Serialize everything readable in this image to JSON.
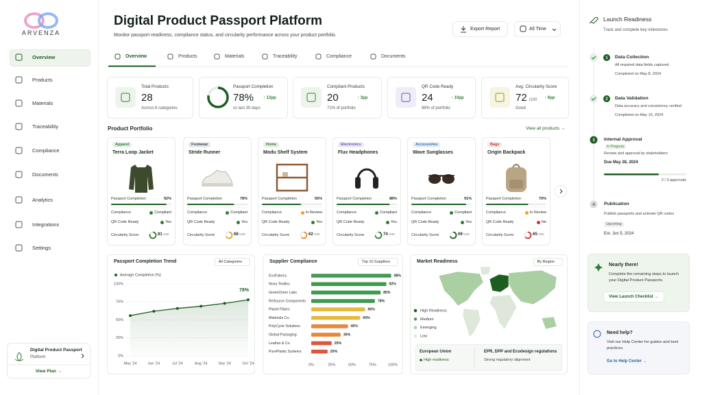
{
  "brand": "ARVENZA",
  "sidebar": {
    "nav": [
      "Overview",
      "Products",
      "Materials",
      "Traceability",
      "Compliance",
      "Documents",
      "Analytics",
      "Integrations",
      "Settings"
    ],
    "plan": {
      "title": "Digital Product Passport",
      "subtitle": "Platform",
      "link": "View Plan →"
    }
  },
  "header": {
    "title": "Digital Product Passport Platform",
    "subtitle": "Monitor passport readiness, compliance status, and circularity performance across your product portfolio.",
    "export": "Export Report",
    "period": "All Time"
  },
  "tabs": [
    "Overview",
    "Products",
    "Materials",
    "Traceability",
    "Compliance",
    "Documents"
  ],
  "kpis": [
    {
      "label": "Total Products",
      "value": 28,
      "note": "Across 6 categories"
    },
    {
      "label": "Passport Completion",
      "value": {
        "value": 78,
        "label": "78%"
      },
      "delta": "↑ 12pp",
      "note": "vs last 30 days"
    },
    {
      "label": "Compliant Products",
      "value": 20,
      "delta": "↑ 3pp",
      "note": "71% of portfolio"
    },
    {
      "label": "QR Code Ready",
      "value": 24,
      "delta": "↑ 10pp",
      "note": "86% of portfolio"
    },
    {
      "label": "Avg. Circularity Score",
      "value": 72,
      "unit": "/100",
      "delta": "↑ 6pp",
      "note": "Good"
    }
  ],
  "portfolio": {
    "title": "Product Portfolio",
    "link": "View all products →",
    "row_labels": {
      "completion": "Passport Completion",
      "compliance": "Compliance",
      "qr": "QR Code Ready",
      "circularity": "Circularity Score",
      "score_unit": "/100"
    },
    "products": [
      {
        "tag": "Apparel",
        "tag_color": "#2e7d32",
        "name": "Terra Loop Jacket",
        "completion": {
          "value": 92,
          "label": "92%"
        },
        "compliance": "Compliant",
        "compliance_color": "#2e7d32",
        "qr": "Yes",
        "qr_color": "#2e7d32",
        "circularity": 81,
        "score_color": "#2e7d32"
      },
      {
        "tag": "Footwear",
        "tag_color": "#37474f",
        "name": "Stride Runner",
        "completion": {
          "value": 78,
          "label": "78%"
        },
        "compliance": "Compliant",
        "compliance_color": "#2e7d32",
        "qr": "Yes",
        "qr_color": "#2e7d32",
        "circularity": 68,
        "score_color": "#e0a526"
      },
      {
        "tag": "Home",
        "tag_color": "#2e7d32",
        "name": "Modu Shelf System",
        "completion": {
          "value": 65,
          "label": "65%"
        },
        "compliance": "In Review",
        "compliance_color": "#f0a020",
        "qr": "Yes",
        "qr_color": "#2e7d32",
        "circularity": 62,
        "score_color": "#ef8c2a"
      },
      {
        "tag": "Electronics",
        "tag_color": "#6a4fb3",
        "name": "Flux Headphones",
        "completion": {
          "value": 88,
          "label": "88%"
        },
        "compliance": "Compliant",
        "compliance_color": "#2e7d32",
        "qr": "Yes",
        "qr_color": "#2e7d32",
        "circularity": 74,
        "score_color": "#2e7d32"
      },
      {
        "tag": "Accessories",
        "tag_color": "#2f6db3",
        "name": "Wave Sunglasses",
        "completion": {
          "value": 91,
          "label": "91%"
        },
        "compliance": "Compliant",
        "compliance_color": "#2e7d32",
        "qr": "Yes",
        "qr_color": "#2e7d32",
        "circularity": 69,
        "score_color": "#1b5e20"
      },
      {
        "tag": "Bags",
        "tag_color": "#c0392b",
        "name": "Origin Backpack",
        "completion": {
          "value": 70,
          "label": "70%"
        },
        "compliance": "In Review",
        "compliance_color": "#f0a020",
        "qr": "No",
        "qr_color": "#d32f2f",
        "circularity": 65,
        "score_color": "#d32f2f"
      }
    ]
  },
  "chart_data": [
    {
      "type": "line",
      "title": "Passport Completion Trend",
      "filter": "All Categories",
      "categories": [
        "May '24",
        "Jun '24",
        "Jul '24",
        "Aug '24",
        "Sep '24",
        "Oct '24"
      ],
      "series": [
        {
          "name": "Average Completion (%)",
          "color": "#1b5e20",
          "values": [
            56,
            62,
            66,
            69,
            73,
            78
          ],
          "value_labels": [
            null,
            null,
            null,
            null,
            null,
            "78%"
          ]
        }
      ],
      "ylim": [
        0,
        100
      ],
      "yticks": [
        {
          "value": 0,
          "label": "0%"
        },
        {
          "value": 25,
          "label": "25%"
        },
        {
          "value": 50,
          "label": "50%"
        },
        {
          "value": 75,
          "label": "75%"
        },
        {
          "value": 100,
          "label": "100%"
        }
      ],
      "grid": true
    },
    {
      "type": "bar",
      "orientation": "horizontal",
      "title": "Supplier Compliance",
      "filter": "Top 10 Suppliers",
      "categories": [
        "EcoFabrics",
        "Nova Textiles",
        "GreenChem Labs",
        "ReSource Components",
        "Planet Fibers",
        "Materials Co.",
        "PolyCycle Solutions",
        "Global Packaging",
        "Leather & Co.",
        "PurePlastic Systems"
      ],
      "values": [
        98,
        92,
        85,
        78,
        66,
        60,
        45,
        36,
        25,
        20
      ],
      "value_labels": [
        "98%",
        "92%",
        "85%",
        "78%",
        "66%",
        "60%",
        "45%",
        "36%",
        "25%",
        "20%"
      ],
      "colors": [
        "#3f9a4f",
        "#3f9a4f",
        "#3f9a4f",
        "#3f9a4f",
        "#e6b93a",
        "#e6b93a",
        "#e7883a",
        "#e7883a",
        "#e0553f",
        "#e0553f"
      ],
      "xlim": [
        0,
        100
      ],
      "xticks": [
        {
          "value": 0,
          "label": "0%"
        },
        {
          "value": 25,
          "label": "25%"
        },
        {
          "value": 50,
          "label": "50%"
        },
        {
          "value": 75,
          "label": "75%"
        },
        {
          "value": 100,
          "label": "100%"
        }
      ]
    },
    {
      "type": "map",
      "title": "Market Readiness",
      "filter": "By Region",
      "legend": [
        {
          "name": "High Readiness",
          "color": "#1b5e20"
        },
        {
          "name": "Medium",
          "color": "#4f9a55"
        },
        {
          "name": "Emerging",
          "color": "#a9cfa3"
        },
        {
          "name": "Low",
          "color": "#dde8da"
        }
      ],
      "highlight": {
        "region": "European Union",
        "level": "High readiness",
        "topic": "EPR, DPP and Ecodesign regulations",
        "note": "Strong regulatory alignment"
      }
    }
  ],
  "launch": {
    "title": "Launch Readiness",
    "subtitle": "Track and complete key milestones",
    "steps": [
      {
        "number": 1,
        "title": "Data Collection",
        "description": "All required data fields captured",
        "date": "Completed on May 8, 2024"
      },
      {
        "number": 2,
        "title": "Data Validation",
        "description": "Data accuracy and consistency verified",
        "date": "Completed on May 15, 2024"
      },
      {
        "number": 3,
        "title": "Internal Approval",
        "status": "In Progress",
        "description": "Review and approval by stakeholders",
        "date": "Due May 28, 2024",
        "progress": "2 / 3 approvals"
      },
      {
        "number": 4,
        "title": "Publication",
        "description": "Publish passports and activate QR codes",
        "status": "Upcoming",
        "date": "Est. Jun 5, 2024"
      }
    ]
  },
  "cta": {
    "title": "Nearly there!",
    "text": "Complete the remaining steps to launch your Digital Product Passports.",
    "link": "View Launch Checklist →"
  },
  "help": {
    "title": "Need help?",
    "text": "Visit our Help Center for guides and best practices.",
    "link": "Go to Help Center →"
  }
}
